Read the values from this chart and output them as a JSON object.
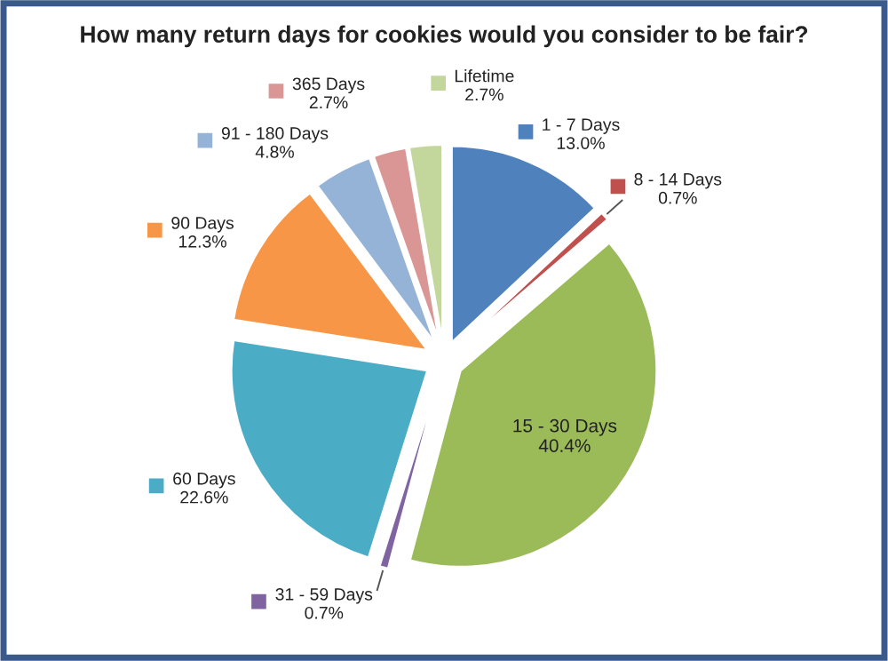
{
  "chart_data": {
    "type": "pie",
    "title": "How many return days for cookies would you consider to be fair?",
    "categories": [
      "1 - 7 Days",
      "8 - 14 Days",
      "15 - 30 Days",
      "31 - 59 Days",
      "60 Days",
      "90 Days",
      "91 - 180 Days",
      "365 Days",
      "Lifetime"
    ],
    "values": [
      13.0,
      0.7,
      40.4,
      0.7,
      22.6,
      12.3,
      4.8,
      2.7,
      2.7
    ],
    "value_labels": [
      "13.0%",
      "0.7%",
      "40.4%",
      "0.7%",
      "22.6%",
      "12.3%",
      "4.8%",
      "2.7%",
      "2.7%"
    ],
    "colors": [
      "#4f81bd",
      "#c0504d",
      "#9bbb59",
      "#8064a2",
      "#4bacc6",
      "#f79646",
      "#95b3d7",
      "#d99694",
      "#c3d69b"
    ],
    "legend": "top"
  }
}
